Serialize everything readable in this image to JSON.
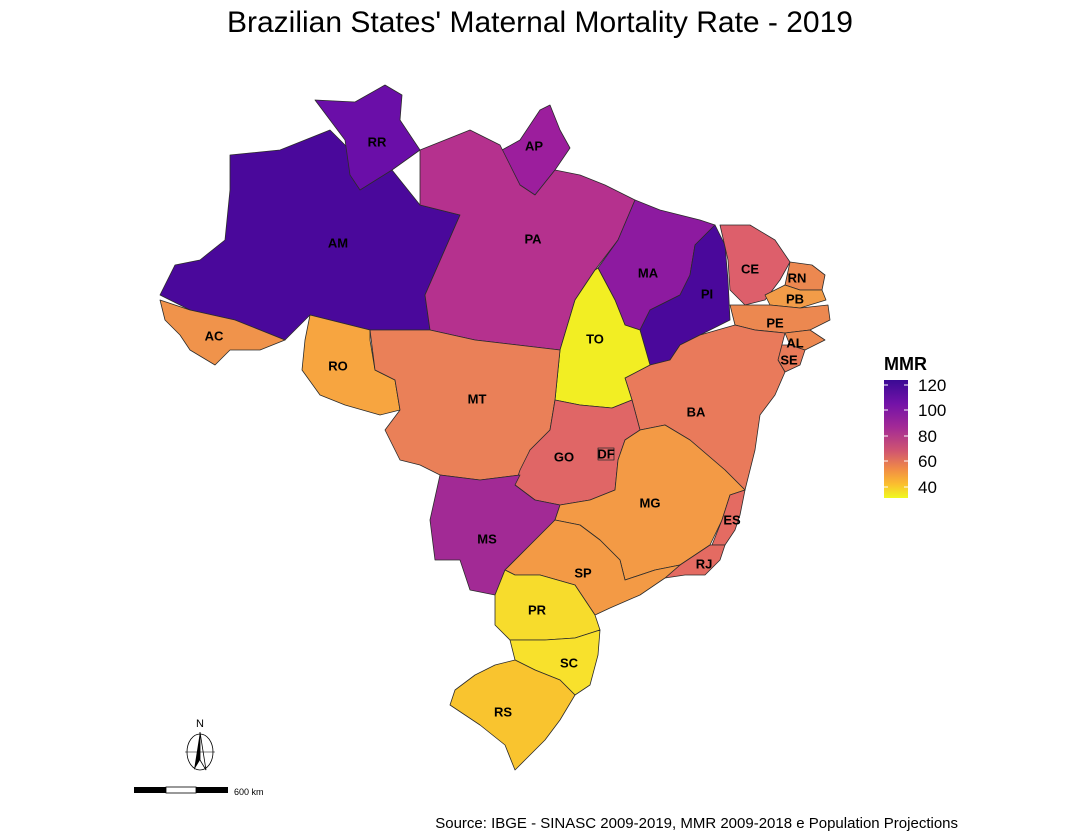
{
  "title": "Brazilian States' Maternal Mortality Rate - 2019",
  "caption": "Source: IBGE - SINASC 2009-2019, MMR 2009-2018 e Population Projections",
  "legend": {
    "title": "MMR",
    "ticks": [
      "120",
      "100",
      "80",
      "60",
      "40"
    ],
    "colors": [
      "#3a0a94",
      "#7312a8",
      "#a32a96",
      "#d05570",
      "#f08a47",
      "#fbbd2f",
      "#f0f921"
    ]
  },
  "scale_bar": {
    "label": "600 km"
  },
  "north_arrow": {
    "label": "N",
    "icon": "north-arrow-icon"
  },
  "states": [
    {
      "code": "AM",
      "color": "#4a089b",
      "mmr": 112
    },
    {
      "code": "RR",
      "color": "#6a0ea8",
      "mmr": 100
    },
    {
      "code": "AP",
      "color": "#9c1e9d",
      "mmr": 88
    },
    {
      "code": "PA",
      "color": "#b5318e",
      "mmr": 82
    },
    {
      "code": "MA",
      "color": "#8d1aa0",
      "mmr": 92
    },
    {
      "code": "PI",
      "color": "#4a089b",
      "mmr": 112
    },
    {
      "code": "CE",
      "color": "#dd5f6b",
      "mmr": 70
    },
    {
      "code": "RN",
      "color": "#ec8850",
      "mmr": 62
    },
    {
      "code": "PB",
      "color": "#f29c48",
      "mmr": 58
    },
    {
      "code": "PE",
      "color": "#ec8850",
      "mmr": 62
    },
    {
      "code": "AL",
      "color": "#ec8850",
      "mmr": 62
    },
    {
      "code": "SE",
      "color": "#e87a59",
      "mmr": 65
    },
    {
      "code": "BA",
      "color": "#e97a5b",
      "mmr": 65
    },
    {
      "code": "TO",
      "color": "#f2ee23",
      "mmr": 38
    },
    {
      "code": "AC",
      "color": "#f0934b",
      "mmr": 60
    },
    {
      "code": "RO",
      "color": "#f7a540",
      "mmr": 56
    },
    {
      "code": "MT",
      "color": "#ea8058",
      "mmr": 64
    },
    {
      "code": "GO",
      "color": "#e06666",
      "mmr": 69
    },
    {
      "code": "DF",
      "color": "#e06666",
      "mmr": 69
    },
    {
      "code": "MS",
      "color": "#a22a95",
      "mmr": 85
    },
    {
      "code": "MG",
      "color": "#f39a45",
      "mmr": 58
    },
    {
      "code": "ES",
      "color": "#e46b62",
      "mmr": 68
    },
    {
      "code": "RJ",
      "color": "#e46b62",
      "mmr": 68
    },
    {
      "code": "SP",
      "color": "#f39a45",
      "mmr": 58
    },
    {
      "code": "PR",
      "color": "#f7dc2c",
      "mmr": 44
    },
    {
      "code": "SC",
      "color": "#f8e12c",
      "mmr": 43
    },
    {
      "code": "RS",
      "color": "#f9c42f",
      "mmr": 48
    }
  ]
}
